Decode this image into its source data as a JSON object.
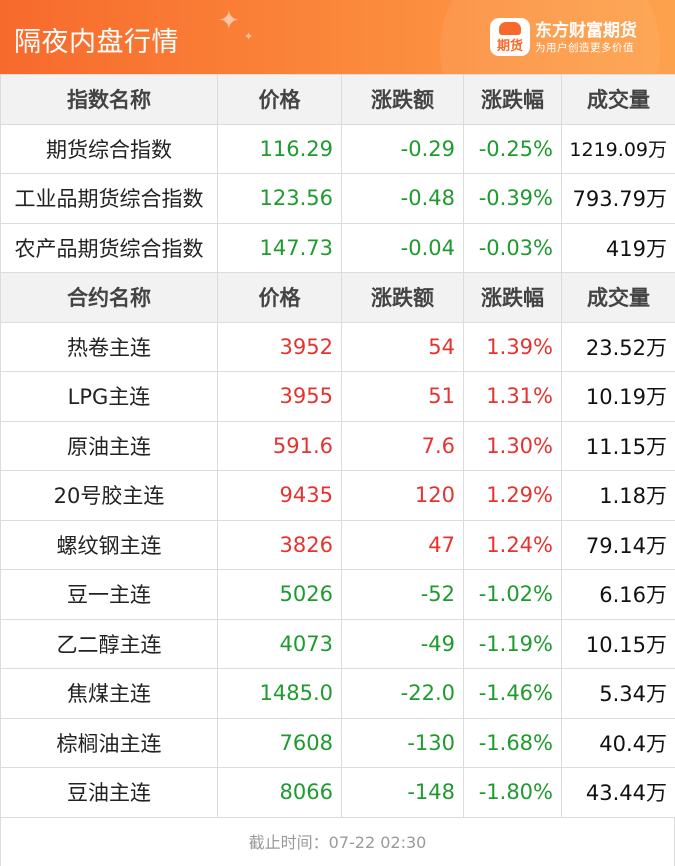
{
  "header": {
    "title": "隔夜内盘行情",
    "brand_name": "东方财富期货",
    "brand_slogan": "为用户创造更多价值",
    "logo_text": "期货",
    "accent_color": "#f76a2c"
  },
  "index_table": {
    "headers": [
      "指数名称",
      "价格",
      "涨跌额",
      "涨跌幅",
      "成交量"
    ],
    "rows": [
      {
        "name": "期货综合指数",
        "price": "116.29",
        "change": "-0.29",
        "pct": "-0.25%",
        "volume": "1219.09万",
        "trend": "down"
      },
      {
        "name": "工业品期货综合指数",
        "price": "123.56",
        "change": "-0.48",
        "pct": "-0.39%",
        "volume": "793.79万",
        "trend": "down"
      },
      {
        "name": "农产品期货综合指数",
        "price": "147.73",
        "change": "-0.04",
        "pct": "-0.03%",
        "volume": "419万",
        "trend": "down"
      }
    ]
  },
  "contract_table": {
    "headers": [
      "合约名称",
      "价格",
      "涨跌额",
      "涨跌幅",
      "成交量"
    ],
    "rows": [
      {
        "name": "热卷主连",
        "price": "3952",
        "change": "54",
        "pct": "1.39%",
        "volume": "23.52万",
        "trend": "up"
      },
      {
        "name": "LPG主连",
        "price": "3955",
        "change": "51",
        "pct": "1.31%",
        "volume": "10.19万",
        "trend": "up"
      },
      {
        "name": "原油主连",
        "price": "591.6",
        "change": "7.6",
        "pct": "1.30%",
        "volume": "11.15万",
        "trend": "up"
      },
      {
        "name": "20号胶主连",
        "price": "9435",
        "change": "120",
        "pct": "1.29%",
        "volume": "1.18万",
        "trend": "up"
      },
      {
        "name": "螺纹钢主连",
        "price": "3826",
        "change": "47",
        "pct": "1.24%",
        "volume": "79.14万",
        "trend": "up"
      },
      {
        "name": "豆一主连",
        "price": "5026",
        "change": "-52",
        "pct": "-1.02%",
        "volume": "6.16万",
        "trend": "down"
      },
      {
        "name": "乙二醇主连",
        "price": "4073",
        "change": "-49",
        "pct": "-1.19%",
        "volume": "10.15万",
        "trend": "down"
      },
      {
        "name": "焦煤主连",
        "price": "1485.0",
        "change": "-22.0",
        "pct": "-1.46%",
        "volume": "5.34万",
        "trend": "down"
      },
      {
        "name": "棕榈油主连",
        "price": "7608",
        "change": "-130",
        "pct": "-1.68%",
        "volume": "40.4万",
        "trend": "down"
      },
      {
        "name": "豆油主连",
        "price": "8066",
        "change": "-148",
        "pct": "-1.80%",
        "volume": "43.44万",
        "trend": "down"
      }
    ]
  },
  "footer": {
    "deadline": "截止时间：07-22 02:30"
  }
}
